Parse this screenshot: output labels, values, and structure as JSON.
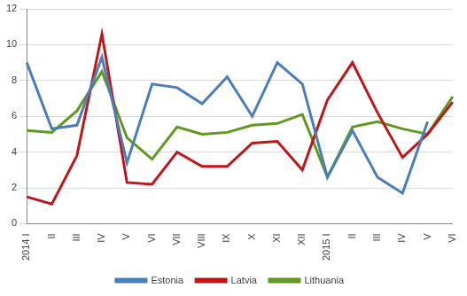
{
  "chart_data": {
    "type": "line",
    "categories": [
      "2014 I",
      "II",
      "III",
      "IV",
      "V",
      "VI",
      "VII",
      "VIII",
      "IX",
      "X",
      "XI",
      "XII",
      "2015 I",
      "II",
      "III",
      "IV",
      "V",
      "VI"
    ],
    "series": [
      {
        "name": "Estonia",
        "color": "#4a7ebb",
        "values": [
          9.0,
          5.3,
          5.5,
          9.3,
          3.4,
          7.8,
          7.6,
          6.7,
          8.2,
          6.0,
          9.0,
          7.8,
          2.6,
          5.2,
          2.6,
          1.7,
          5.7,
          null
        ]
      },
      {
        "name": "Latvia",
        "color": "#c0161b",
        "values": [
          1.5,
          1.1,
          3.8,
          10.6,
          2.3,
          2.2,
          4.0,
          3.2,
          3.2,
          4.5,
          4.6,
          3.0,
          6.9,
          9.0,
          6.2,
          3.7,
          5.0,
          6.8
        ]
      },
      {
        "name": "Lithuania",
        "color": "#5f9a1f",
        "values": [
          5.2,
          5.1,
          6.3,
          8.5,
          4.8,
          3.6,
          5.4,
          5.0,
          5.1,
          5.5,
          5.6,
          6.1,
          2.6,
          5.4,
          5.7,
          5.3,
          5.0,
          7.1
        ]
      }
    ],
    "ylim": [
      0,
      12
    ],
    "yticks": [
      0,
      2,
      4,
      6,
      8,
      10,
      12
    ],
    "grid": true,
    "legend": "bottom"
  }
}
